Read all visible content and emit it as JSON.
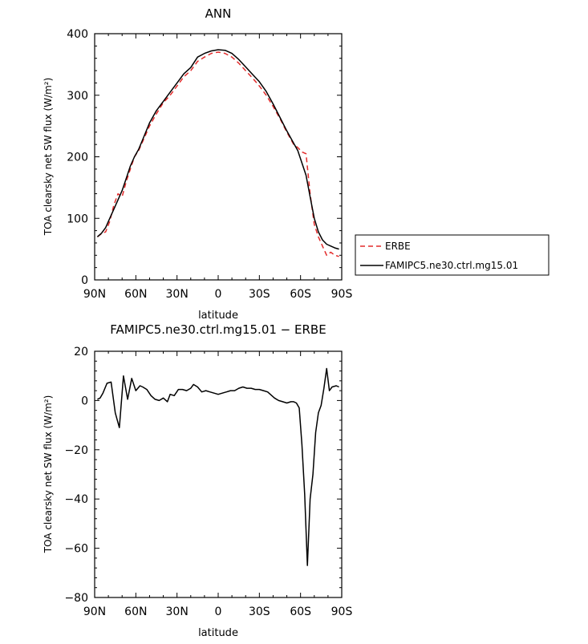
{
  "chart_data": [
    {
      "type": "line",
      "title": "ANN",
      "xlabel": "latitude",
      "ylabel": "TOA clearsky net SW flux (W/m²)",
      "xlim": [
        90,
        -90
      ],
      "ylim": [
        0,
        400
      ],
      "xticks": [
        90,
        60,
        30,
        0,
        -30,
        -60,
        -90
      ],
      "xtick_labels": [
        "90N",
        "60N",
        "30N",
        "0",
        "30S",
        "60S",
        "90S"
      ],
      "yticks": [
        0,
        100,
        200,
        300,
        400
      ],
      "ytick_labels": [
        "0",
        "100",
        "200",
        "300",
        "400"
      ],
      "legend": "outside-right",
      "series": [
        {
          "name": "ERBE",
          "color": "#e32b2b",
          "style": "dashed",
          "x": [
            88,
            85,
            82,
            79,
            76,
            73,
            70,
            67,
            64,
            61,
            58,
            55,
            50,
            45,
            40,
            35,
            30,
            25,
            20,
            15,
            10,
            5,
            0,
            -5,
            -10,
            -15,
            -20,
            -25,
            -30,
            -35,
            -40,
            -45,
            -50,
            -55,
            -58,
            -61,
            -64,
            -67,
            -70,
            -73,
            -76,
            -79,
            -82,
            -85,
            -88
          ],
          "values": [
            70,
            75,
            78,
            95,
            122,
            140,
            135,
            160,
            180,
            200,
            210,
            225,
            250,
            270,
            288,
            300,
            315,
            330,
            340,
            355,
            362,
            368,
            370,
            368,
            362,
            352,
            340,
            328,
            315,
            300,
            282,
            262,
            240,
            220,
            215,
            208,
            205,
            140,
            90,
            70,
            55,
            40,
            45,
            40,
            38
          ]
        },
        {
          "name": "FAMIPC5.ne30.ctrl.mg15.01",
          "color": "#000000",
          "style": "solid",
          "x": [
            88,
            85,
            82,
            79,
            76,
            73,
            70,
            67,
            64,
            61,
            58,
            55,
            50,
            45,
            40,
            35,
            30,
            25,
            20,
            15,
            10,
            5,
            0,
            -5,
            -10,
            -15,
            -20,
            -25,
            -30,
            -35,
            -40,
            -45,
            -50,
            -55,
            -58,
            -61,
            -64,
            -67,
            -70,
            -73,
            -76,
            -79,
            -82,
            -85,
            -88
          ],
          "values": [
            70,
            76,
            85,
            100,
            115,
            130,
            145,
            165,
            185,
            200,
            212,
            228,
            255,
            275,
            290,
            305,
            320,
            335,
            345,
            362,
            368,
            372,
            374,
            373,
            368,
            358,
            346,
            334,
            322,
            306,
            286,
            264,
            242,
            222,
            210,
            190,
            170,
            135,
            100,
            78,
            65,
            58,
            55,
            52,
            50
          ]
        }
      ]
    },
    {
      "type": "line",
      "title": "FAMIPC5.ne30.ctrl.mg15.01 − ERBE",
      "xlabel": "latitude",
      "ylabel": "TOA clearsky net SW flux (W/m²)",
      "xlim": [
        90,
        -90
      ],
      "ylim": [
        -80,
        20
      ],
      "xticks": [
        90,
        60,
        30,
        0,
        -30,
        -60,
        -90
      ],
      "xtick_labels": [
        "90N",
        "60N",
        "30N",
        "0",
        "30S",
        "60S",
        "90S"
      ],
      "yticks": [
        -80,
        -60,
        -40,
        -20,
        0,
        20
      ],
      "ytick_labels": [
        "−80",
        "−60",
        "−40",
        "−20",
        "0",
        "20"
      ],
      "series": [
        {
          "color": "#000000",
          "style": "solid",
          "x": [
            88,
            86,
            84,
            81,
            78,
            75,
            72,
            69,
            66,
            63,
            60,
            57,
            55,
            52,
            49,
            46,
            43,
            40,
            37,
            35,
            32,
            29,
            26,
            23,
            20,
            18,
            15,
            12,
            9,
            6,
            3,
            0,
            -3,
            -6,
            -9,
            -12,
            -15,
            -18,
            -21,
            -24,
            -27,
            -30,
            -33,
            -36,
            -38,
            -41,
            -44,
            -47,
            -50,
            -53,
            -55,
            -57,
            -59,
            -61,
            -63,
            -65,
            -67,
            -69,
            -71,
            -73,
            -75,
            -77,
            -79,
            -81,
            -83,
            -86,
            -88
          ],
          "values": [
            0.5,
            1,
            3,
            7,
            7.5,
            -5,
            -11,
            10,
            0.5,
            9,
            4,
            6,
            5.5,
            4.5,
            2,
            0.5,
            0,
            1,
            -0.5,
            2.5,
            2,
            4.5,
            4.5,
            4,
            5,
            6.5,
            5.5,
            3.5,
            4,
            3.5,
            3,
            2.5,
            3,
            3.5,
            4,
            4,
            5,
            5.5,
            5,
            5,
            4.5,
            4.5,
            4,
            3.5,
            2.5,
            1,
            0,
            -0.5,
            -1,
            -0.5,
            -0.5,
            -1,
            -3,
            -18,
            -38,
            -67,
            -40,
            -30,
            -13,
            -5,
            -2,
            5,
            13,
            4,
            5.5,
            6,
            5.5
          ]
        }
      ]
    }
  ]
}
